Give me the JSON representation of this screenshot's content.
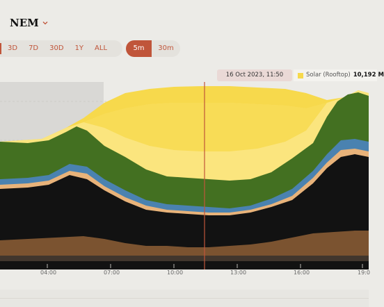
{
  "region": {
    "label": "NEM"
  },
  "range_tabs": [
    "3D",
    "7D",
    "30D",
    "1Y",
    "ALL"
  ],
  "interval_tabs": [
    {
      "label": "5m",
      "active": true
    },
    {
      "label": "30m",
      "active": false
    }
  ],
  "tooltip": {
    "datetime": "16 Oct 2023, 11:50 AM",
    "series": "Solar (Rooftop)",
    "value": "10,192 M",
    "color": "#f7d94c"
  },
  "colors": {
    "accent": "#c0553a",
    "solar_rooftop": "#f7d94c",
    "solar_utility": "#fbe57e",
    "wind": "#437021",
    "hydro": "#4a82b0",
    "gas": "#e8b37a",
    "coal_black": "#121212",
    "coal_brown": "#7b5330"
  },
  "chart_data": {
    "type": "area",
    "x_ticks": [
      "04:00",
      "07:00",
      "10:00",
      "13:00",
      "16:00",
      "19:0"
    ],
    "cursor_time": "11:50",
    "shaded_until": "07:00"
  }
}
